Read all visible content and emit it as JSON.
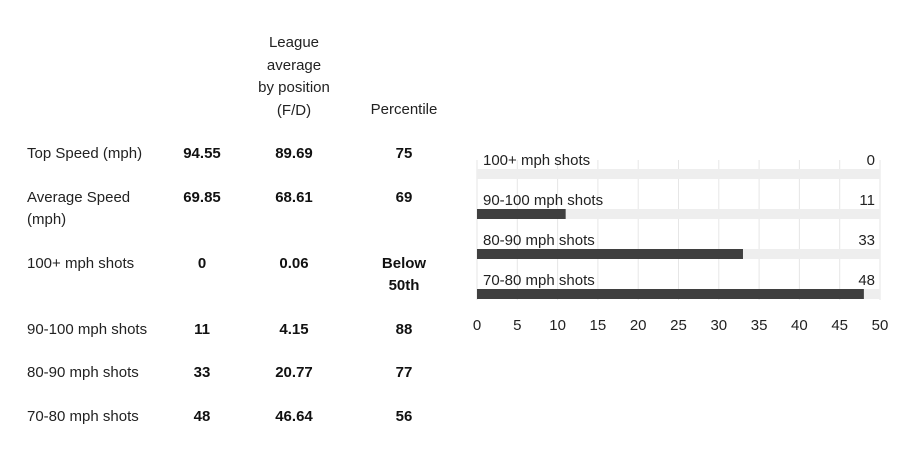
{
  "table": {
    "headers": {
      "league_average": [
        "League",
        "average",
        "by position",
        "(F/D)"
      ],
      "percentile": "Percentile"
    },
    "rows": [
      {
        "label": "Top Speed (mph)",
        "value": "94.55",
        "league_avg": "89.69",
        "percentile": "75"
      },
      {
        "label": "Average Speed (mph)",
        "value": "69.85",
        "league_avg": "68.61",
        "percentile": "69"
      },
      {
        "label": "100+ mph shots",
        "value": "0",
        "league_avg": "0.06",
        "percentile": "Below 50th"
      },
      {
        "label": "90-100 mph shots",
        "value": "11",
        "league_avg": "4.15",
        "percentile": "88"
      },
      {
        "label": "80-90 mph shots",
        "value": "33",
        "league_avg": "20.77",
        "percentile": "77"
      },
      {
        "label": "70-80 mph shots",
        "value": "48",
        "league_avg": "46.64",
        "percentile": "56"
      }
    ]
  },
  "chart_data": {
    "type": "bar",
    "orientation": "horizontal",
    "categories": [
      "100+ mph shots",
      "90-100 mph shots",
      "80-90 mph shots",
      "70-80 mph shots"
    ],
    "values": [
      0,
      11,
      33,
      48
    ],
    "xlim": [
      0,
      50
    ],
    "xticks": [
      0,
      5,
      10,
      15,
      20,
      25,
      30,
      35,
      40,
      45,
      50
    ],
    "grid": true,
    "bar_color": "#3f3f3f",
    "track_color": "#eeeeee",
    "grid_color": "#e6e6e6"
  }
}
